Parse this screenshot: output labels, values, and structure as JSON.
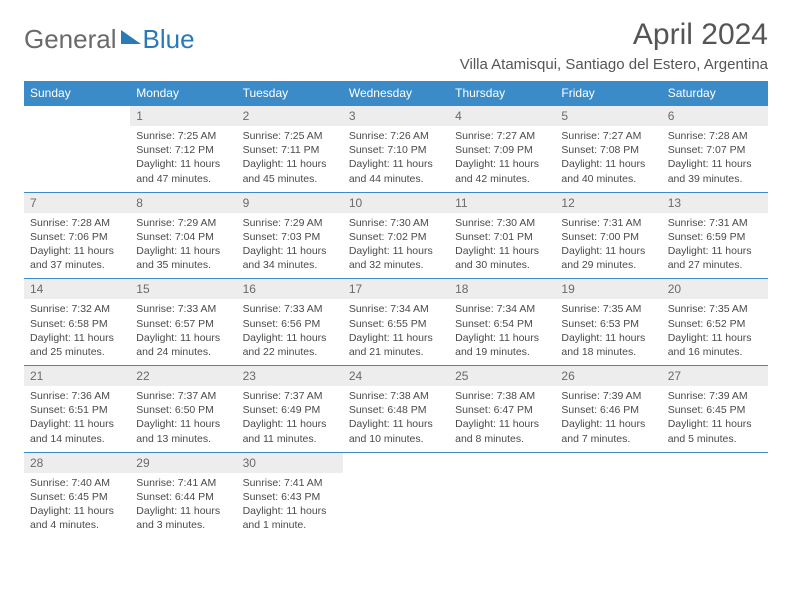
{
  "brand": {
    "part1": "General",
    "part2": "Blue"
  },
  "title": "April 2024",
  "location": "Villa Atamisqui, Santiago del Estero, Argentina",
  "colors": {
    "header_bg": "#3b8bc8",
    "daynum_bg": "#ededed",
    "text_gray": "#555555",
    "brand_blue": "#2a7ab8"
  },
  "weekdays": [
    "Sunday",
    "Monday",
    "Tuesday",
    "Wednesday",
    "Thursday",
    "Friday",
    "Saturday"
  ],
  "weeks": [
    [
      null,
      {
        "n": "1",
        "sr": "7:25 AM",
        "ss": "7:12 PM",
        "dl": "11 hours and 47 minutes."
      },
      {
        "n": "2",
        "sr": "7:25 AM",
        "ss": "7:11 PM",
        "dl": "11 hours and 45 minutes."
      },
      {
        "n": "3",
        "sr": "7:26 AM",
        "ss": "7:10 PM",
        "dl": "11 hours and 44 minutes."
      },
      {
        "n": "4",
        "sr": "7:27 AM",
        "ss": "7:09 PM",
        "dl": "11 hours and 42 minutes."
      },
      {
        "n": "5",
        "sr": "7:27 AM",
        "ss": "7:08 PM",
        "dl": "11 hours and 40 minutes."
      },
      {
        "n": "6",
        "sr": "7:28 AM",
        "ss": "7:07 PM",
        "dl": "11 hours and 39 minutes."
      }
    ],
    [
      {
        "n": "7",
        "sr": "7:28 AM",
        "ss": "7:06 PM",
        "dl": "11 hours and 37 minutes."
      },
      {
        "n": "8",
        "sr": "7:29 AM",
        "ss": "7:04 PM",
        "dl": "11 hours and 35 minutes."
      },
      {
        "n": "9",
        "sr": "7:29 AM",
        "ss": "7:03 PM",
        "dl": "11 hours and 34 minutes."
      },
      {
        "n": "10",
        "sr": "7:30 AM",
        "ss": "7:02 PM",
        "dl": "11 hours and 32 minutes."
      },
      {
        "n": "11",
        "sr": "7:30 AM",
        "ss": "7:01 PM",
        "dl": "11 hours and 30 minutes."
      },
      {
        "n": "12",
        "sr": "7:31 AM",
        "ss": "7:00 PM",
        "dl": "11 hours and 29 minutes."
      },
      {
        "n": "13",
        "sr": "7:31 AM",
        "ss": "6:59 PM",
        "dl": "11 hours and 27 minutes."
      }
    ],
    [
      {
        "n": "14",
        "sr": "7:32 AM",
        "ss": "6:58 PM",
        "dl": "11 hours and 25 minutes."
      },
      {
        "n": "15",
        "sr": "7:33 AM",
        "ss": "6:57 PM",
        "dl": "11 hours and 24 minutes."
      },
      {
        "n": "16",
        "sr": "7:33 AM",
        "ss": "6:56 PM",
        "dl": "11 hours and 22 minutes."
      },
      {
        "n": "17",
        "sr": "7:34 AM",
        "ss": "6:55 PM",
        "dl": "11 hours and 21 minutes."
      },
      {
        "n": "18",
        "sr": "7:34 AM",
        "ss": "6:54 PM",
        "dl": "11 hours and 19 minutes."
      },
      {
        "n": "19",
        "sr": "7:35 AM",
        "ss": "6:53 PM",
        "dl": "11 hours and 18 minutes."
      },
      {
        "n": "20",
        "sr": "7:35 AM",
        "ss": "6:52 PM",
        "dl": "11 hours and 16 minutes."
      }
    ],
    [
      {
        "n": "21",
        "sr": "7:36 AM",
        "ss": "6:51 PM",
        "dl": "11 hours and 14 minutes."
      },
      {
        "n": "22",
        "sr": "7:37 AM",
        "ss": "6:50 PM",
        "dl": "11 hours and 13 minutes."
      },
      {
        "n": "23",
        "sr": "7:37 AM",
        "ss": "6:49 PM",
        "dl": "11 hours and 11 minutes."
      },
      {
        "n": "24",
        "sr": "7:38 AM",
        "ss": "6:48 PM",
        "dl": "11 hours and 10 minutes."
      },
      {
        "n": "25",
        "sr": "7:38 AM",
        "ss": "6:47 PM",
        "dl": "11 hours and 8 minutes."
      },
      {
        "n": "26",
        "sr": "7:39 AM",
        "ss": "6:46 PM",
        "dl": "11 hours and 7 minutes."
      },
      {
        "n": "27",
        "sr": "7:39 AM",
        "ss": "6:45 PM",
        "dl": "11 hours and 5 minutes."
      }
    ],
    [
      {
        "n": "28",
        "sr": "7:40 AM",
        "ss": "6:45 PM",
        "dl": "11 hours and 4 minutes."
      },
      {
        "n": "29",
        "sr": "7:41 AM",
        "ss": "6:44 PM",
        "dl": "11 hours and 3 minutes."
      },
      {
        "n": "30",
        "sr": "7:41 AM",
        "ss": "6:43 PM",
        "dl": "11 hours and 1 minute."
      },
      null,
      null,
      null,
      null
    ]
  ],
  "labels": {
    "sunrise": "Sunrise:",
    "sunset": "Sunset:",
    "daylight": "Daylight:"
  }
}
